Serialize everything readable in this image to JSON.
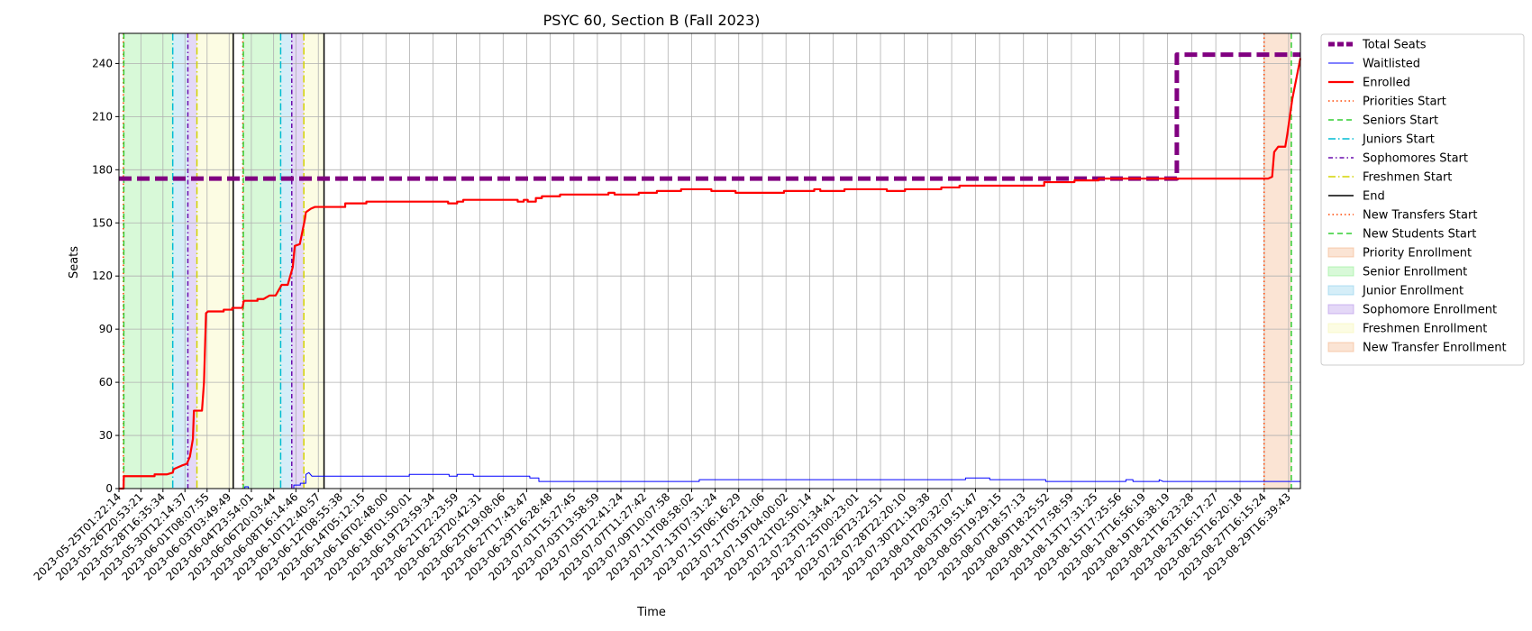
{
  "chart_data": {
    "type": "line",
    "title": "PSYC 60, Section B (Fall 2023)",
    "xlabel": "Time",
    "ylabel": "Seats",
    "xlim": [
      "2023-05-25T01:22:14",
      "2023-08-30T16:00:00"
    ],
    "ylim": [
      0,
      257
    ],
    "yticks": [
      0,
      30,
      60,
      90,
      120,
      150,
      180,
      210,
      240
    ],
    "xtick_labels": [
      "2023-05-25T01:22:14",
      "2023-05-26T20:53:21",
      "2023-05-28T16:35:34",
      "2023-05-30T12:14:37",
      "2023-06-01T08:07:55",
      "2023-06-03T03:49:49",
      "2023-06-04T23:54:01",
      "2023-06-06T20:03:44",
      "2023-06-08T16:14:46",
      "2023-06-10T12:40:57",
      "2023-06-12T08:55:38",
      "2023-06-14T05:12:15",
      "2023-06-16T02:48:00",
      "2023-06-18T01:50:01",
      "2023-06-19T23:59:34",
      "2023-06-21T22:23:59",
      "2023-06-23T20:42:31",
      "2023-06-25T19:08:06",
      "2023-06-27T17:43:47",
      "2023-06-29T16:28:48",
      "2023-07-01T15:27:45",
      "2023-07-03T13:58:59",
      "2023-07-05T12:41:24",
      "2023-07-07T11:27:42",
      "2023-07-09T10:07:58",
      "2023-07-11T08:58:02",
      "2023-07-13T07:31:24",
      "2023-07-15T06:16:29",
      "2023-07-17T05:21:06",
      "2023-07-19T04:00:02",
      "2023-07-21T02:50:14",
      "2023-07-23T01:34:41",
      "2023-07-25T00:23:01",
      "2023-07-26T23:22:51",
      "2023-07-28T22:20:10",
      "2023-07-30T21:19:38",
      "2023-08-01T20:32:07",
      "2023-08-03T19:51:47",
      "2023-08-05T19:29:15",
      "2023-08-07T18:57:13",
      "2023-08-09T18:25:52",
      "2023-08-11T17:58:59",
      "2023-08-13T17:31:25",
      "2023-08-15T17:25:56",
      "2023-08-17T16:56:19",
      "2023-08-19T16:38:19",
      "2023-08-21T16:23:28",
      "2023-08-23T16:17:27",
      "2023-08-25T16:20:18",
      "2023-08-27T16:15:24",
      "2023-08-29T16:39:43"
    ],
    "grid": true,
    "legend_position": "outside-right",
    "series": [
      {
        "name": "Total Seats",
        "color": "#800080",
        "style": "dashed-thick",
        "points": [
          [
            "2023-05-25T01:22:14",
            175
          ],
          [
            "2023-08-20T11:00:00",
            175
          ],
          [
            "2023-08-20T11:00:00",
            245
          ],
          [
            "2023-08-30T16:00:00",
            245
          ]
        ]
      },
      {
        "name": "Waitlisted",
        "color": "#0000ff",
        "style": "solid-thin",
        "points": [
          [
            "2023-05-25T01:22:14",
            0
          ],
          [
            "2023-06-04T11:00:00",
            0
          ],
          [
            "2023-06-04T11:00:00",
            1
          ],
          [
            "2023-06-04T18:00:00",
            1
          ],
          [
            "2023-06-04T18:00:00",
            0
          ],
          [
            "2023-06-08T12:00:00",
            0
          ],
          [
            "2023-06-08T12:00:00",
            2
          ],
          [
            "2023-06-09T01:00:00",
            2
          ],
          [
            "2023-06-09T01:00:00",
            3
          ],
          [
            "2023-06-09T12:00:00",
            3
          ],
          [
            "2023-06-09T12:00:00",
            8
          ],
          [
            "2023-06-09T18:00:00",
            9
          ],
          [
            "2023-06-10T00:00:00",
            7
          ],
          [
            "2023-06-18T01:00:00",
            7
          ],
          [
            "2023-06-18T01:00:00",
            8
          ],
          [
            "2023-06-21T08:00:00",
            8
          ],
          [
            "2023-06-21T08:00:00",
            7
          ],
          [
            "2023-06-22T00:00:00",
            7
          ],
          [
            "2023-06-22T00:00:00",
            8
          ],
          [
            "2023-06-23T08:00:00",
            8
          ],
          [
            "2023-06-23T08:00:00",
            7
          ],
          [
            "2023-06-28T00:00:00",
            7
          ],
          [
            "2023-06-28T00:00:00",
            6
          ],
          [
            "2023-06-28T18:00:00",
            6
          ],
          [
            "2023-06-28T18:00:00",
            4
          ],
          [
            "2023-07-12T00:00:00",
            4
          ],
          [
            "2023-07-12T00:00:00",
            5
          ],
          [
            "2023-08-03T00:00:00",
            5
          ],
          [
            "2023-08-03T00:00:00",
            6
          ],
          [
            "2023-08-05T00:00:00",
            6
          ],
          [
            "2023-08-05T00:00:00",
            5
          ],
          [
            "2023-08-09T15:00:00",
            5
          ],
          [
            "2023-08-09T15:00:00",
            4
          ],
          [
            "2023-08-16T06:00:00",
            4
          ],
          [
            "2023-08-16T06:00:00",
            5
          ],
          [
            "2023-08-16T20:00:00",
            5
          ],
          [
            "2023-08-16T20:00:00",
            4
          ],
          [
            "2023-08-19T00:00:00",
            4
          ],
          [
            "2023-08-19T00:00:00",
            5
          ],
          [
            "2023-08-19T08:00:00",
            4
          ],
          [
            "2023-08-30T16:00:00",
            4
          ]
        ]
      },
      {
        "name": "Enrolled",
        "color": "#ff0000",
        "style": "solid-thick",
        "points": [
          [
            "2023-05-25T01:22:14",
            0
          ],
          [
            "2023-05-25T10:30:00",
            0
          ],
          [
            "2023-05-25T11:00:00",
            7
          ],
          [
            "2023-05-28T00:00:00",
            7
          ],
          [
            "2023-05-28T00:00:00",
            8
          ],
          [
            "2023-05-29T00:00:00",
            8
          ],
          [
            "2023-05-29T12:00:00",
            9
          ],
          [
            "2023-05-29T14:00:00",
            11
          ],
          [
            "2023-05-30T06:00:00",
            13
          ],
          [
            "2023-05-30T16:00:00",
            14
          ],
          [
            "2023-05-30T22:00:00",
            18
          ],
          [
            "2023-05-31T04:00:00",
            28
          ],
          [
            "2023-05-31T06:00:00",
            44
          ],
          [
            "2023-05-31T22:00:00",
            44
          ],
          [
            "2023-06-01T02:00:00",
            60
          ],
          [
            "2023-06-01T06:00:00",
            99
          ],
          [
            "2023-06-01T10:00:00",
            100
          ],
          [
            "2023-06-02T17:00:00",
            100
          ],
          [
            "2023-06-02T17:00:00",
            101
          ],
          [
            "2023-06-03T10:00:00",
            101
          ],
          [
            "2023-06-03T10:00:00",
            102
          ],
          [
            "2023-06-04T06:00:00",
            102
          ],
          [
            "2023-06-04T09:00:00",
            106
          ],
          [
            "2023-06-05T12:00:00",
            106
          ],
          [
            "2023-06-05T12:00:00",
            107
          ],
          [
            "2023-06-06T00:00:00",
            107
          ],
          [
            "2023-06-06T12:00:00",
            109
          ],
          [
            "2023-06-07T00:00:00",
            109
          ],
          [
            "2023-06-07T12:00:00",
            115
          ],
          [
            "2023-06-08T00:00:00",
            115
          ],
          [
            "2023-06-08T10:00:00",
            125
          ],
          [
            "2023-06-08T14:00:00",
            137
          ],
          [
            "2023-06-09T00:00:00",
            138
          ],
          [
            "2023-06-09T10:00:00",
            152
          ],
          [
            "2023-06-09T12:00:00",
            156
          ],
          [
            "2023-06-09T22:00:00",
            158
          ],
          [
            "2023-06-10T06:00:00",
            159
          ],
          [
            "2023-06-12T18:00:00",
            159
          ],
          [
            "2023-06-12T18:00:00",
            161
          ],
          [
            "2023-06-14T12:00:00",
            161
          ],
          [
            "2023-06-14T12:00:00",
            162
          ],
          [
            "2023-06-21T06:00:00",
            162
          ],
          [
            "2023-06-21T06:00:00",
            161
          ],
          [
            "2023-06-22T00:00:00",
            161
          ],
          [
            "2023-06-22T00:00:00",
            162
          ],
          [
            "2023-06-22T12:00:00",
            162
          ],
          [
            "2023-06-22T12:00:00",
            163
          ],
          [
            "2023-06-23T00:00:00",
            163
          ],
          [
            "2023-06-27T00:00:00",
            163
          ],
          [
            "2023-06-27T00:00:00",
            162
          ],
          [
            "2023-06-27T12:00:00",
            162
          ],
          [
            "2023-06-27T12:00:00",
            163
          ],
          [
            "2023-06-27T20:00:00",
            163
          ],
          [
            "2023-06-27T20:00:00",
            162
          ],
          [
            "2023-06-28T12:00:00",
            162
          ],
          [
            "2023-06-28T12:00:00",
            164
          ],
          [
            "2023-06-29T00:00:00",
            164
          ],
          [
            "2023-06-29T00:00:00",
            165
          ],
          [
            "2023-06-30T12:00:00",
            165
          ],
          [
            "2023-06-30T12:00:00",
            166
          ],
          [
            "2023-07-04T12:00:00",
            166
          ],
          [
            "2023-07-04T12:00:00",
            167
          ],
          [
            "2023-07-05T00:00:00",
            167
          ],
          [
            "2023-07-05T00:00:00",
            166
          ],
          [
            "2023-07-07T00:00:00",
            166
          ],
          [
            "2023-07-07T00:00:00",
            167
          ],
          [
            "2023-07-08T12:00:00",
            167
          ],
          [
            "2023-07-08T12:00:00",
            168
          ],
          [
            "2023-07-10T12:00:00",
            168
          ],
          [
            "2023-07-10T12:00:00",
            169
          ],
          [
            "2023-07-13T00:00:00",
            169
          ],
          [
            "2023-07-13T00:00:00",
            168
          ],
          [
            "2023-07-15T00:00:00",
            168
          ],
          [
            "2023-07-15T00:00:00",
            167
          ],
          [
            "2023-07-19T00:00:00",
            167
          ],
          [
            "2023-07-19T00:00:00",
            168
          ],
          [
            "2023-07-21T12:00:00",
            168
          ],
          [
            "2023-07-21T12:00:00",
            169
          ],
          [
            "2023-07-22T00:00:00",
            169
          ],
          [
            "2023-07-22T00:00:00",
            168
          ],
          [
            "2023-07-24T00:00:00",
            168
          ],
          [
            "2023-07-24T00:00:00",
            169
          ],
          [
            "2023-07-27T12:00:00",
            169
          ],
          [
            "2023-07-27T12:00:00",
            168
          ],
          [
            "2023-07-29T00:00:00",
            168
          ],
          [
            "2023-07-29T00:00:00",
            169
          ],
          [
            "2023-08-01T00:00:00",
            169
          ],
          [
            "2023-08-01T00:00:00",
            170
          ],
          [
            "2023-08-02T12:00:00",
            170
          ],
          [
            "2023-08-02T12:00:00",
            171
          ],
          [
            "2023-08-09T12:00:00",
            171
          ],
          [
            "2023-08-09T12:00:00",
            173
          ],
          [
            "2023-08-12T00:00:00",
            173
          ],
          [
            "2023-08-12T00:00:00",
            174
          ],
          [
            "2023-08-14T00:00:00",
            174
          ],
          [
            "2023-08-14T00:00:00",
            175
          ],
          [
            "2023-08-28T00:00:00",
            175
          ],
          [
            "2023-08-28T08:00:00",
            176
          ],
          [
            "2023-08-28T12:00:00",
            190
          ],
          [
            "2023-08-28T20:00:00",
            193
          ],
          [
            "2023-08-29T10:00:00",
            193
          ],
          [
            "2023-08-29T14:00:00",
            200
          ],
          [
            "2023-08-30T00:00:00",
            220
          ],
          [
            "2023-08-30T16:00:00",
            243
          ]
        ]
      }
    ],
    "vlines": [
      {
        "name": "Priorities Start",
        "color": "#ff4500",
        "style": "dotted",
        "times": [
          "2023-05-25T10:00:00",
          "2023-06-04T07:00:00",
          "2023-08-27T16:00:00"
        ]
      },
      {
        "name": "Seniors Start",
        "color": "#32cd32",
        "style": "dashed",
        "times": [
          "2023-05-25T11:00:00",
          "2023-06-04T08:00:00",
          "2023-08-29T22:00:00"
        ]
      },
      {
        "name": "Juniors Start",
        "color": "#00bcd4",
        "style": "dashdot",
        "times": [
          "2023-05-29T12:00:00",
          "2023-06-07T10:00:00"
        ]
      },
      {
        "name": "Sophomores Start",
        "color": "#6a0dad",
        "style": "dashdot-dense",
        "times": [
          "2023-05-30T18:00:00",
          "2023-06-08T08:00:00"
        ]
      },
      {
        "name": "Freshmen Start",
        "color": "#d4d400",
        "style": "dashdot",
        "times": [
          "2023-05-31T12:00:00",
          "2023-06-09T08:00:00"
        ]
      },
      {
        "name": "End",
        "color": "#000000",
        "style": "solid",
        "times": [
          "2023-06-03T12:00:00",
          "2023-06-11T00:00:00"
        ]
      },
      {
        "name": "New Transfers Start",
        "color": "#ff4500",
        "style": "dotted",
        "times": []
      },
      {
        "name": "New Students Start",
        "color": "#32cd32",
        "style": "dashed",
        "times": []
      }
    ],
    "spans": [
      {
        "name": "Priority Enrollment",
        "color": "#f4b183",
        "ranges": [
          [
            "2023-05-25T10:00:00",
            "2023-05-25T11:00:00"
          ],
          [
            "2023-06-04T07:00:00",
            "2023-06-04T08:00:00"
          ]
        ]
      },
      {
        "name": "Senior Enrollment",
        "color": "#90ee90",
        "ranges": [
          [
            "2023-05-25T11:00:00",
            "2023-05-29T12:00:00"
          ],
          [
            "2023-06-04T08:00:00",
            "2023-06-07T10:00:00"
          ]
        ]
      },
      {
        "name": "Junior Enrollment",
        "color": "#87ceeb",
        "ranges": [
          [
            "2023-05-29T12:00:00",
            "2023-05-30T18:00:00"
          ],
          [
            "2023-06-07T10:00:00",
            "2023-06-08T08:00:00"
          ]
        ]
      },
      {
        "name": "Sophomore Enrollment",
        "color": "#b38ee8",
        "ranges": [
          [
            "2023-05-30T18:00:00",
            "2023-05-31T12:00:00"
          ],
          [
            "2023-06-08T08:00:00",
            "2023-06-09T08:00:00"
          ]
        ]
      },
      {
        "name": "Freshmen Enrollment",
        "color": "#f5f5b0",
        "ranges": [
          [
            "2023-05-31T12:00:00",
            "2023-06-03T12:00:00"
          ],
          [
            "2023-06-09T08:00:00",
            "2023-06-11T00:00:00"
          ]
        ]
      },
      {
        "name": "New Transfer Enrollment",
        "color": "#f4b183",
        "ranges": [
          [
            "2023-08-27T16:00:00",
            "2023-08-29T22:00:00"
          ]
        ]
      }
    ]
  }
}
